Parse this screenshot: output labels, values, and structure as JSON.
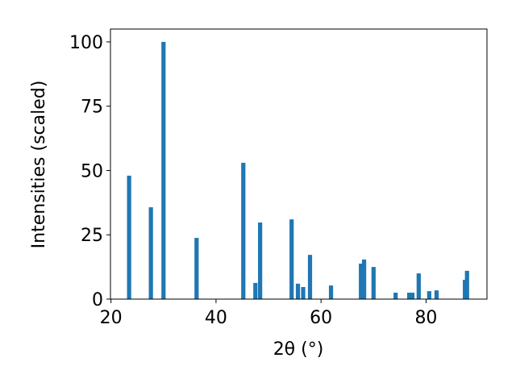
{
  "chart_data": {
    "type": "bar",
    "x": [
      23.45,
      27.6,
      30.0,
      36.3,
      45.2,
      47.5,
      48.4,
      54.4,
      55.6,
      56.6,
      57.9,
      61.9,
      67.6,
      68.2,
      70.0,
      74.2,
      76.8,
      77.4,
      78.6,
      80.6,
      82.0,
      87.4,
      87.8
    ],
    "values": [
      48,
      35.7,
      100,
      23.8,
      53,
      6.3,
      29.8,
      31,
      6,
      4.7,
      17.2,
      5.3,
      13.8,
      15.4,
      12.5,
      2.5,
      2.5,
      2.5,
      10,
      3.1,
      3.4,
      7.5,
      11
    ],
    "color": "#1f77b4",
    "xlabel": "2θ (°)",
    "ylabel": "Intensities (scaled)",
    "xlim": [
      19.9,
      91.6
    ],
    "ylim": [
      0,
      105
    ],
    "xticks": [
      20,
      40,
      60,
      80
    ],
    "yticks": [
      0,
      25,
      50,
      75,
      100
    ]
  }
}
